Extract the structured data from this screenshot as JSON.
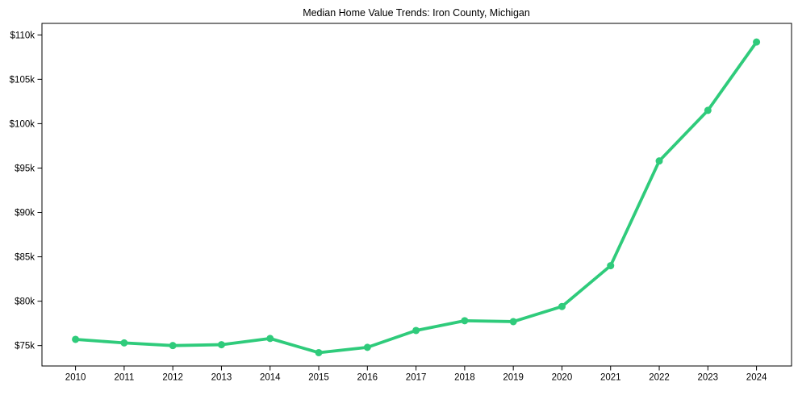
{
  "chart_data": {
    "type": "line",
    "title": "Median Home Value Trends: Iron County, Michigan",
    "xlabel": "",
    "ylabel": "",
    "x": [
      2010,
      2011,
      2012,
      2013,
      2014,
      2015,
      2016,
      2017,
      2018,
      2019,
      2020,
      2021,
      2022,
      2023,
      2024
    ],
    "values": [
      75700,
      75300,
      75000,
      75100,
      75800,
      74200,
      74800,
      76700,
      77800,
      77700,
      79400,
      84000,
      95800,
      101500,
      109200
    ],
    "xlim": [
      2009.31,
      2024.72
    ],
    "ylim": [
      72700,
      111300
    ],
    "xticks": [
      {
        "value": 2010,
        "label": "2010"
      },
      {
        "value": 2011,
        "label": "2011"
      },
      {
        "value": 2012,
        "label": "2012"
      },
      {
        "value": 2013,
        "label": "2013"
      },
      {
        "value": 2014,
        "label": "2014"
      },
      {
        "value": 2015,
        "label": "2015"
      },
      {
        "value": 2016,
        "label": "2016"
      },
      {
        "value": 2017,
        "label": "2017"
      },
      {
        "value": 2018,
        "label": "2018"
      },
      {
        "value": 2019,
        "label": "2019"
      },
      {
        "value": 2020,
        "label": "2020"
      },
      {
        "value": 2021,
        "label": "2021"
      },
      {
        "value": 2022,
        "label": "2022"
      },
      {
        "value": 2023,
        "label": "2023"
      },
      {
        "value": 2024,
        "label": "2024"
      }
    ],
    "yticks": [
      {
        "value": 75000,
        "label": "$75k"
      },
      {
        "value": 80000,
        "label": "$80k"
      },
      {
        "value": 85000,
        "label": "$85k"
      },
      {
        "value": 90000,
        "label": "$90k"
      },
      {
        "value": 95000,
        "label": "$95k"
      },
      {
        "value": 100000,
        "label": "$100k"
      },
      {
        "value": 105000,
        "label": "$105k"
      },
      {
        "value": 110000,
        "label": "$110k"
      }
    ],
    "grid": false,
    "legend": "none",
    "line_color": "#2fcb7b",
    "marker_color": "#2fcb7b",
    "axis_color": "#000000",
    "text_color": "#000000",
    "background_color": "#ffffff"
  }
}
